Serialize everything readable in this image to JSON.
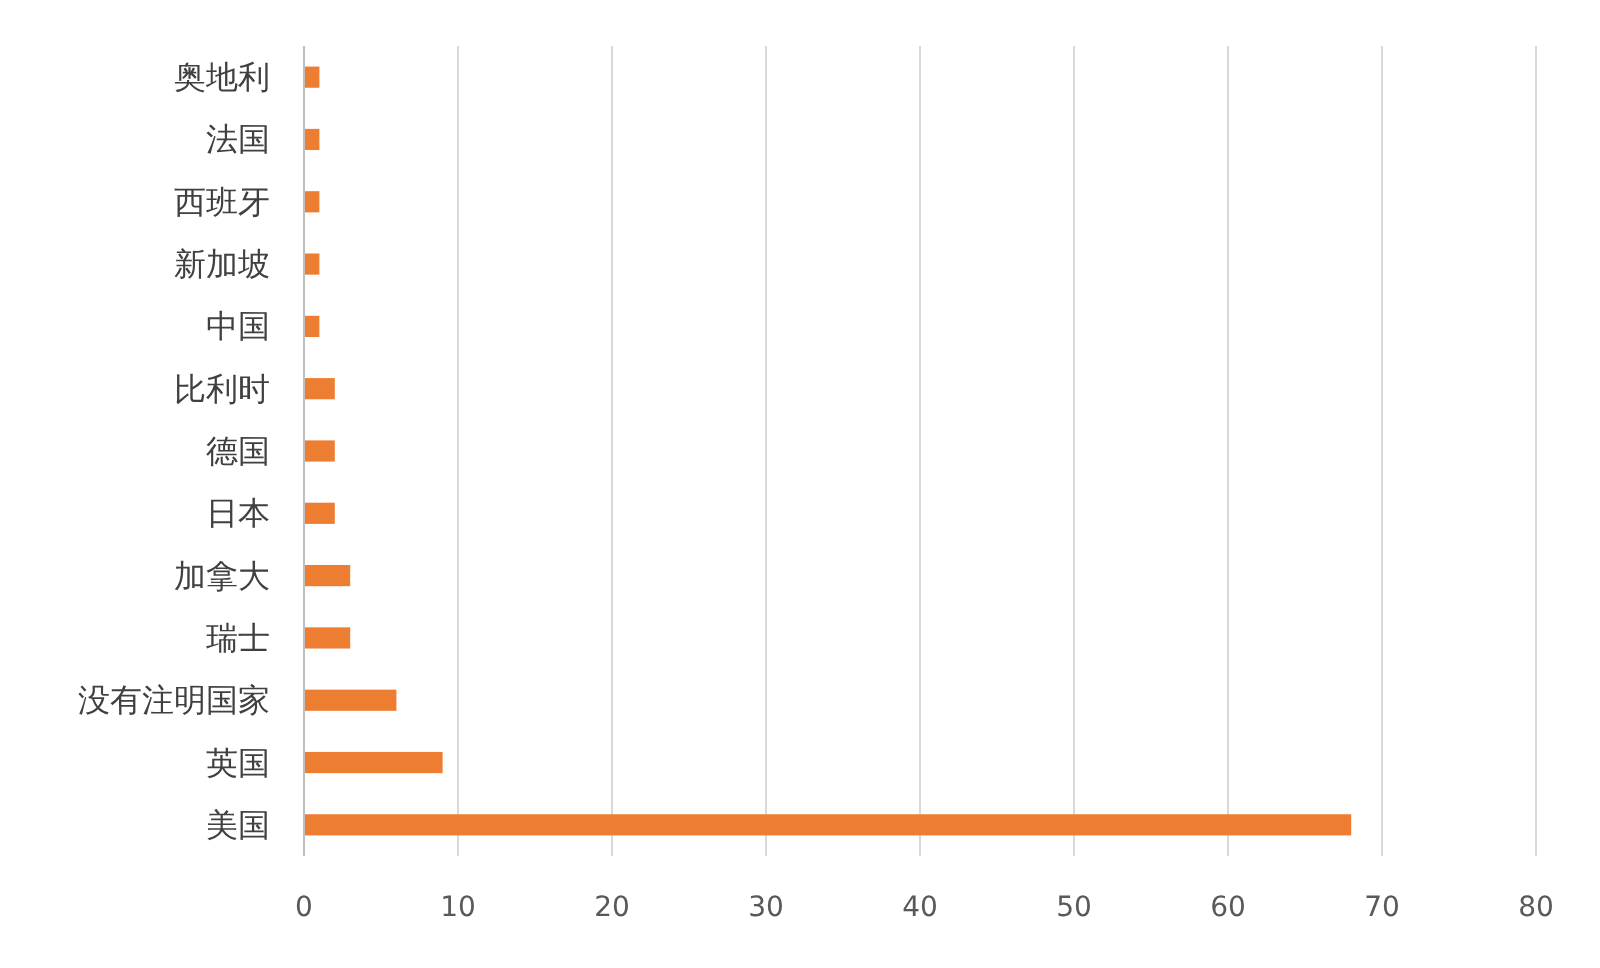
{
  "chart_data": {
    "type": "bar",
    "orientation": "horizontal",
    "categories": [
      "奥地利",
      "法国",
      "西班牙",
      "新加坡",
      "中国",
      "比利时",
      "德国",
      "日本",
      "加拿大",
      "瑞士",
      "没有注明国家",
      "英国",
      "美国"
    ],
    "values": [
      1,
      1,
      1,
      1,
      1,
      2,
      2,
      2,
      3,
      3,
      6,
      9,
      68
    ],
    "color": "#ed7d31",
    "xlim": [
      0,
      80
    ],
    "xticks": [
      0,
      10,
      20,
      30,
      40,
      50,
      60,
      70,
      80
    ],
    "grid": "x"
  }
}
